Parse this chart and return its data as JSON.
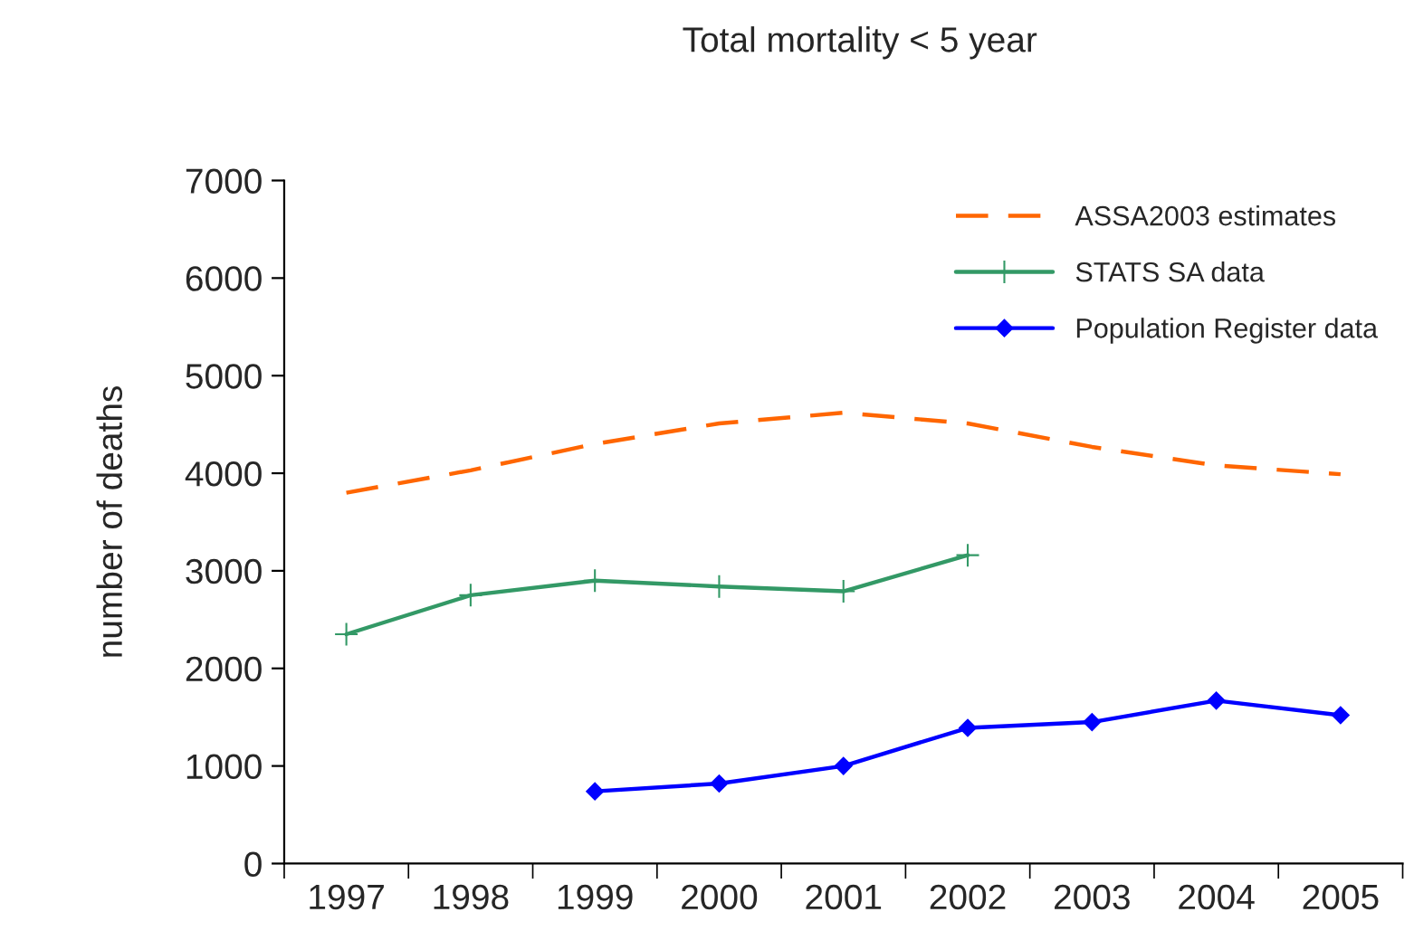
{
  "chart_data": {
    "type": "line",
    "title": "Total mortality < 5 year",
    "ylabel": "number of deaths",
    "categories": [
      "1997",
      "1998",
      "1999",
      "2000",
      "2001",
      "2002",
      "2003",
      "2004",
      "2005"
    ],
    "series": [
      {
        "name": "ASSA2003 estimates",
        "color": "#ff6600",
        "marker": "none",
        "line_style": "dashed",
        "values": [
          3800,
          4030,
          4300,
          4510,
          4620,
          4510,
          4270,
          4080,
          3990
        ]
      },
      {
        "name": "STATS SA data",
        "color": "#339966",
        "marker": "cross",
        "line_style": "solid",
        "values": [
          2350,
          2750,
          2900,
          2840,
          2790,
          3160,
          null,
          null,
          null
        ]
      },
      {
        "name": "Population Register data",
        "color": "#0000ff",
        "marker": "diamond",
        "line_style": "solid",
        "values": [
          null,
          null,
          740,
          820,
          1000,
          1390,
          1450,
          1670,
          1520
        ]
      }
    ],
    "ylim": [
      0,
      7000
    ],
    "yticks": [
      0,
      1000,
      2000,
      3000,
      4000,
      5000,
      6000,
      7000
    ],
    "grid": false,
    "legend": "top right"
  }
}
